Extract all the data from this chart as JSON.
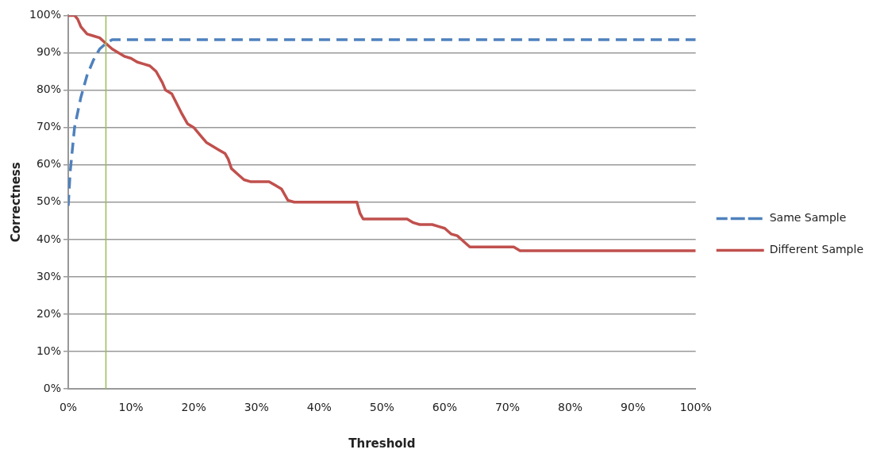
{
  "chart_data": {
    "type": "line",
    "xlabel": "Threshold",
    "ylabel": "Correctness",
    "xlim": [
      0,
      100
    ],
    "xticks": [
      {
        "value": 0,
        "label": "0%"
      },
      {
        "value": 10,
        "label": "10%"
      },
      {
        "value": 20,
        "label": "20%"
      },
      {
        "value": 30,
        "label": "30%"
      },
      {
        "value": 40,
        "label": "40%"
      },
      {
        "value": 50,
        "label": "50%"
      },
      {
        "value": 60,
        "label": "60%"
      },
      {
        "value": 70,
        "label": "70%"
      },
      {
        "value": 80,
        "label": "80%"
      },
      {
        "value": 90,
        "label": "90%"
      },
      {
        "value": 100,
        "label": "100%"
      }
    ],
    "ylim": [
      0,
      100
    ],
    "yticks": [
      {
        "value": 0,
        "label": "0%"
      },
      {
        "value": 10,
        "label": "10%"
      },
      {
        "value": 20,
        "label": "20%"
      },
      {
        "value": 30,
        "label": "30%"
      },
      {
        "value": 40,
        "label": "40%"
      },
      {
        "value": 50,
        "label": "50%"
      },
      {
        "value": 60,
        "label": "60%"
      },
      {
        "value": 70,
        "label": "70%"
      },
      {
        "value": 80,
        "label": "80%"
      },
      {
        "value": 90,
        "label": "90%"
      },
      {
        "value": 100,
        "label": "100%"
      }
    ],
    "grid": "y",
    "legend": "right",
    "marker": "none",
    "ref_lines": [
      {
        "axis": "x",
        "value": 6,
        "color": "#9bbb59"
      }
    ],
    "series": [
      {
        "name": "Same Sample",
        "color": "#4f81bd",
        "line_style": "dashed",
        "x": [
          0,
          0.3,
          1,
          2,
          3,
          4,
          5,
          6,
          7,
          8,
          100
        ],
        "values": [
          49,
          58,
          70,
          78,
          84,
          88,
          91,
          92.5,
          93.5,
          93.5,
          93.5
        ]
      },
      {
        "name": "Different Sample",
        "color": "#c0504d",
        "line_style": "solid",
        "x": [
          0,
          1,
          1.5,
          2,
          3,
          4,
          5,
          6,
          7,
          8,
          9,
          10,
          11,
          12,
          13,
          14,
          15,
          15.5,
          16.5,
          18,
          19,
          20,
          21,
          22,
          23,
          24,
          25,
          25.5,
          26,
          27,
          28,
          29,
          32,
          33,
          34,
          35,
          36,
          46,
          46.5,
          47,
          54,
          55,
          56,
          58,
          59,
          60,
          61,
          62,
          63,
          64,
          65,
          71,
          72,
          100
        ],
        "values": [
          100,
          100,
          99,
          97,
          95,
          94.5,
          94,
          92.5,
          91,
          90,
          89,
          88.5,
          87.5,
          87,
          86.5,
          85,
          82,
          80,
          79,
          74,
          71,
          70,
          68,
          66,
          65,
          64,
          63,
          61.5,
          59,
          57.5,
          56,
          55.5,
          55.5,
          54.5,
          53.5,
          50.5,
          50,
          50,
          47,
          45.5,
          45.5,
          44.5,
          44,
          44,
          43.5,
          43,
          41.5,
          41,
          39.5,
          38,
          38,
          38,
          37,
          37
        ]
      }
    ]
  }
}
